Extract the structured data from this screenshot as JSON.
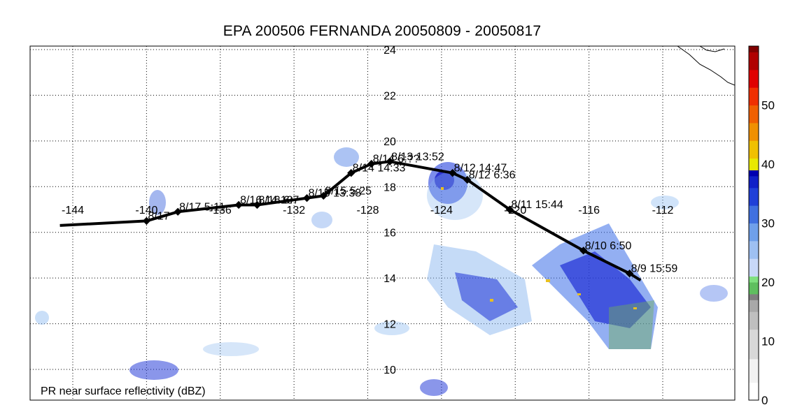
{
  "title": "EPA 200506 FERNANDA 20050809 - 20050817",
  "field_label": "PR near surface reflectivity (dBZ)",
  "lon_labels": [
    "-144",
    "-140",
    "-136",
    "-132",
    "-128",
    "-124",
    "-120",
    "-116",
    "-112"
  ],
  "lat_labels": [
    "10",
    "12",
    "14",
    "16",
    "18",
    "20",
    "22",
    "24"
  ],
  "lon_values": [
    -144,
    -140,
    -136,
    -132,
    -128,
    -124,
    -120,
    -116,
    -112
  ],
  "lat_values": [
    10,
    12,
    14,
    16,
    18,
    20,
    22,
    24
  ],
  "colorbar": {
    "ticks": [
      "0",
      "10",
      "20",
      "30",
      "40",
      "50"
    ],
    "tick_values": [
      0,
      10,
      20,
      30,
      40,
      50
    ],
    "max": 60
  },
  "track_points": [
    {
      "label": "8/9 15:59",
      "lon": -113.8,
      "lat": 14.2
    },
    {
      "label": "8/10 6:50",
      "lon": -116.3,
      "lat": 15.2
    },
    {
      "label": "8/11 15:44",
      "lon": -120.3,
      "lat": 17.0
    },
    {
      "label": "8/12 6:36",
      "lon": -122.6,
      "lat": 18.3
    },
    {
      "label": "8/12 14:47",
      "lon": -123.4,
      "lat": 18.6
    },
    {
      "label": "8/13 13:52",
      "lon": -126.8,
      "lat": 19.1
    },
    {
      "label": "8/14 6:??",
      "lon": -127.8,
      "lat": 19.0
    },
    {
      "label": "8/14 14:33",
      "lon": -128.9,
      "lat": 18.6
    },
    {
      "label": "8/15 5:25",
      "lon": -130.4,
      "lat": 17.6
    },
    {
      "label": "8/15 13:38",
      "lon": -131.3,
      "lat": 17.5
    },
    {
      "label": "8/16 6:7",
      "lon": -134.0,
      "lat": 17.2
    },
    {
      "label": "8/16 14:19",
      "lon": -135.0,
      "lat": 17.2
    },
    {
      "label": "8/17 5:11",
      "lon": -138.3,
      "lat": 16.9
    },
    {
      "label": "8/17",
      "lon": -140.0,
      "lat": 16.5
    }
  ]
}
